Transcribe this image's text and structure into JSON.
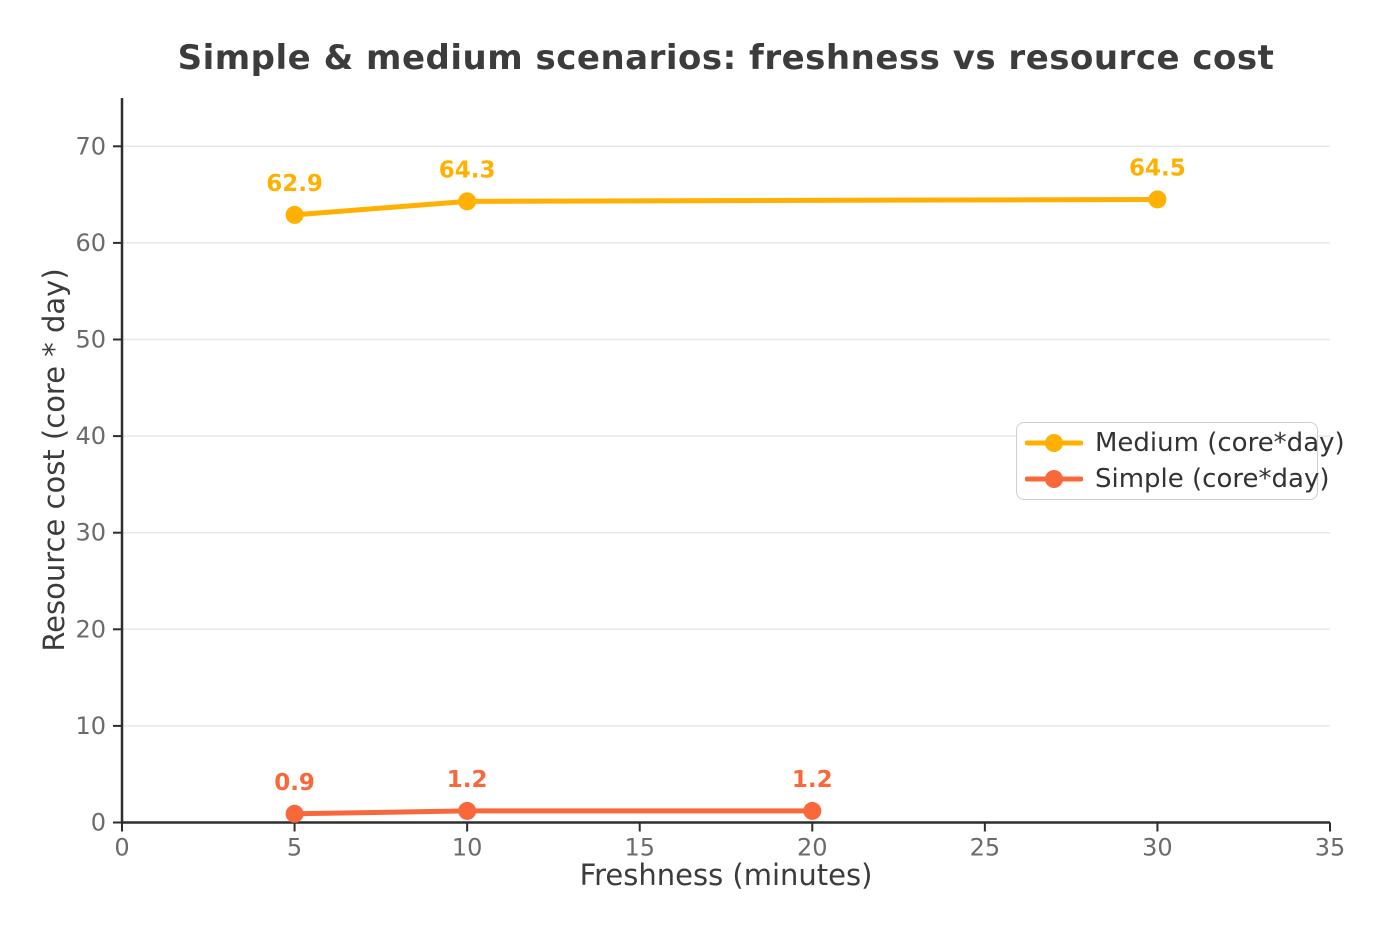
{
  "chart_data": {
    "type": "line",
    "title": "Simple & medium scenarios: freshness vs resource cost",
    "xlabel": "Freshness (minutes)",
    "ylabel": "Resource cost (core * day)",
    "xlim": [
      0,
      35
    ],
    "ylim": [
      0,
      75
    ],
    "xticks": [
      0,
      5,
      10,
      15,
      20,
      25,
      30,
      35
    ],
    "yticks": [
      0,
      10,
      20,
      30,
      40,
      50,
      60,
      70
    ],
    "grid": "horizontal",
    "legend_position": "center-right",
    "series": [
      {
        "name": "Medium (core*day)",
        "color": "#FFB000",
        "x": [
          5,
          10,
          30
        ],
        "y": [
          62.9,
          64.3,
          64.5
        ],
        "point_labels": [
          "62.9",
          "64.3",
          "64.5"
        ]
      },
      {
        "name": "Simple (core*day)",
        "color": "#F9683A",
        "x": [
          5,
          10,
          20
        ],
        "y": [
          0.9,
          1.2,
          1.2
        ],
        "point_labels": [
          "0.9",
          "1.2",
          "1.2"
        ]
      }
    ],
    "colors": {
      "grid": "#E8E8E8",
      "spine": "#2E2E2E",
      "tick_label": "#6B6B6B",
      "text": "#3C3C3C",
      "legend_border": "#CFCFCF"
    }
  }
}
